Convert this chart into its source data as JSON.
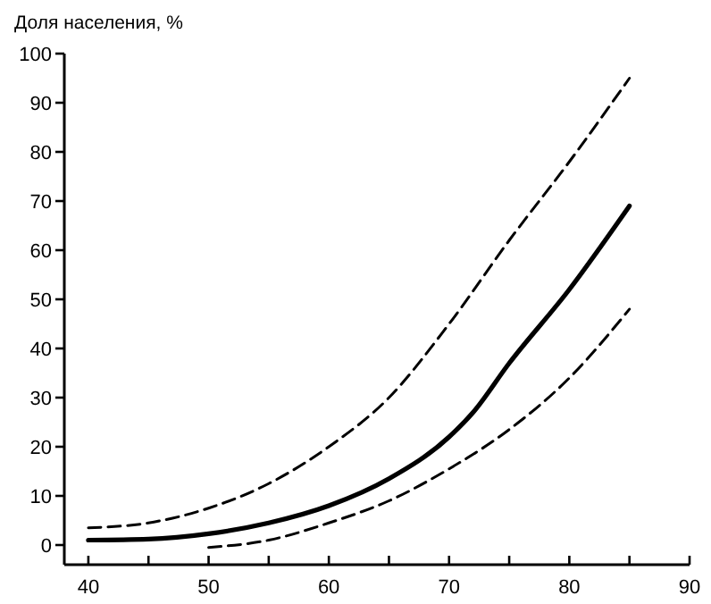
{
  "chart_data": {
    "type": "line",
    "ylabel": "Доля населения, %",
    "xlim": [
      38,
      90
    ],
    "xticks": [
      40,
      {
        "value": 45,
        "label": null
      },
      50,
      {
        "value": 55,
        "label": null
      },
      60,
      {
        "value": 65,
        "label": null
      },
      70,
      {
        "value": 75,
        "label": null
      },
      80,
      {
        "value": 85,
        "label": null
      },
      90
    ],
    "ylim": [
      -4,
      100
    ],
    "yticks": [
      0,
      10,
      20,
      30,
      40,
      50,
      60,
      70,
      80,
      90,
      100
    ],
    "grid": false,
    "series": [
      {
        "color": "#000000",
        "line_style": "dashed",
        "x": [
          40,
          45,
          50,
          55,
          60,
          65,
          70,
          75,
          80,
          85
        ],
        "values": [
          3.5,
          4.5,
          7.5,
          12.5,
          20,
          30,
          45,
          62,
          78,
          95
        ]
      },
      {
        "color": "#000000",
        "line_style": "solid",
        "x": [
          40,
          45,
          50,
          55,
          60,
          65,
          70,
          72,
          75,
          80,
          85
        ],
        "values": [
          1,
          1.2,
          2.3,
          4.5,
          8,
          13.5,
          22,
          27,
          37,
          52,
          69
        ]
      },
      {
        "color": "#000000",
        "line_style": "dashed",
        "x": [
          50,
          55,
          60,
          65,
          70,
          75,
          80,
          85
        ],
        "values": [
          -0.5,
          1,
          4.5,
          9,
          15.5,
          23.5,
          34,
          48
        ]
      }
    ]
  }
}
